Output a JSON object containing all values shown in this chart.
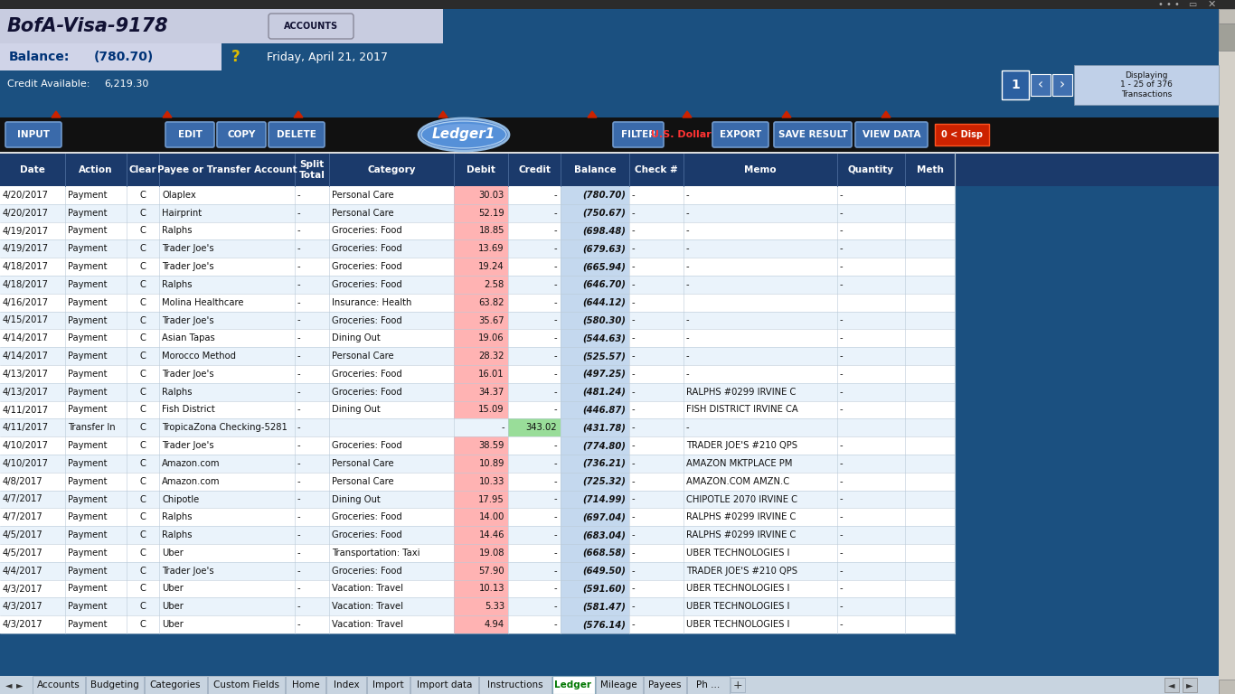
{
  "title_text": "BofA-Visa-9178",
  "balance_label": "Balance:",
  "balance_value": "(780.70)",
  "date_text": "Friday, April 21, 2017",
  "credit_label": "Credit Available:",
  "credit_value": "6,219.30",
  "page_num": "1",
  "accounts_btn": "ACCOUNTS",
  "col_headers": [
    "Date",
    "Action",
    "Clear",
    "Payee or Transfer Account",
    "Split\nTotal",
    "Category",
    "Debit",
    "Credit",
    "Balance",
    "Check #",
    "Memo",
    "Quantity",
    "Meth"
  ],
  "rows": [
    [
      "4/20/2017",
      "Payment",
      "C",
      "Olaplex",
      "-",
      "Personal Care",
      "30.03",
      "-",
      "(780.70)",
      "-",
      "-",
      "-",
      ""
    ],
    [
      "4/20/2017",
      "Payment",
      "C",
      "Hairprint",
      "-",
      "Personal Care",
      "52.19",
      "-",
      "(750.67)",
      "-",
      "-",
      "-",
      ""
    ],
    [
      "4/19/2017",
      "Payment",
      "C",
      "Ralphs",
      "-",
      "Groceries: Food",
      "18.85",
      "-",
      "(698.48)",
      "-",
      "-",
      "-",
      ""
    ],
    [
      "4/19/2017",
      "Payment",
      "C",
      "Trader Joe's",
      "-",
      "Groceries: Food",
      "13.69",
      "-",
      "(679.63)",
      "-",
      "-",
      "-",
      ""
    ],
    [
      "4/18/2017",
      "Payment",
      "C",
      "Trader Joe's",
      "-",
      "Groceries: Food",
      "19.24",
      "-",
      "(665.94)",
      "-",
      "-",
      "-",
      ""
    ],
    [
      "4/18/2017",
      "Payment",
      "C",
      "Ralphs",
      "-",
      "Groceries: Food",
      "2.58",
      "-",
      "(646.70)",
      "-",
      "-",
      "-",
      ""
    ],
    [
      "4/16/2017",
      "Payment",
      "C",
      "Molina Healthcare",
      "-",
      "Insurance: Health",
      "63.82",
      "-",
      "(644.12)",
      "-",
      "",
      "",
      ""
    ],
    [
      "4/15/2017",
      "Payment",
      "C",
      "Trader Joe's",
      "-",
      "Groceries: Food",
      "35.67",
      "-",
      "(580.30)",
      "-",
      "-",
      "-",
      ""
    ],
    [
      "4/14/2017",
      "Payment",
      "C",
      "Asian Tapas",
      "-",
      "Dining Out",
      "19.06",
      "-",
      "(544.63)",
      "-",
      "-",
      "-",
      ""
    ],
    [
      "4/14/2017",
      "Payment",
      "C",
      "Morocco Method",
      "-",
      "Personal Care",
      "28.32",
      "-",
      "(525.57)",
      "-",
      "-",
      "-",
      ""
    ],
    [
      "4/13/2017",
      "Payment",
      "C",
      "Trader Joe's",
      "-",
      "Groceries: Food",
      "16.01",
      "-",
      "(497.25)",
      "-",
      "-",
      "-",
      ""
    ],
    [
      "4/13/2017",
      "Payment",
      "C",
      "Ralphs",
      "-",
      "Groceries: Food",
      "34.37",
      "-",
      "(481.24)",
      "-",
      "RALPHS #0299 IRVINE C",
      "-",
      ""
    ],
    [
      "4/11/2017",
      "Payment",
      "C",
      "Fish District",
      "-",
      "Dining Out",
      "15.09",
      "-",
      "(446.87)",
      "-",
      "FISH DISTRICT IRVINE CA",
      "-",
      ""
    ],
    [
      "4/11/2017",
      "Transfer In",
      "C",
      "TropicaZona Checking-5281",
      "-",
      "",
      "-",
      "343.02",
      "(431.78)",
      "-",
      "-",
      "",
      ""
    ],
    [
      "4/10/2017",
      "Payment",
      "C",
      "Trader Joe's",
      "-",
      "Groceries: Food",
      "38.59",
      "-",
      "(774.80)",
      "-",
      "TRADER JOE'S #210 QPS",
      "-",
      ""
    ],
    [
      "4/10/2017",
      "Payment",
      "C",
      "Amazon.com",
      "-",
      "Personal Care",
      "10.89",
      "-",
      "(736.21)",
      "-",
      "AMAZON MKTPLACE PM",
      "-",
      ""
    ],
    [
      "4/8/2017",
      "Payment",
      "C",
      "Amazon.com",
      "-",
      "Personal Care",
      "10.33",
      "-",
      "(725.32)",
      "-",
      "AMAZON.COM AMZN.C",
      "-",
      ""
    ],
    [
      "4/7/2017",
      "Payment",
      "C",
      "Chipotle",
      "-",
      "Dining Out",
      "17.95",
      "-",
      "(714.99)",
      "-",
      "CHIPOTLE 2070 IRVINE C",
      "-",
      ""
    ],
    [
      "4/7/2017",
      "Payment",
      "C",
      "Ralphs",
      "-",
      "Groceries: Food",
      "14.00",
      "-",
      "(697.04)",
      "-",
      "RALPHS #0299 IRVINE C",
      "-",
      ""
    ],
    [
      "4/5/2017",
      "Payment",
      "C",
      "Ralphs",
      "-",
      "Groceries: Food",
      "14.46",
      "-",
      "(683.04)",
      "-",
      "RALPHS #0299 IRVINE C",
      "-",
      ""
    ],
    [
      "4/5/2017",
      "Payment",
      "C",
      "Uber",
      "-",
      "Transportation: Taxi",
      "19.08",
      "-",
      "(668.58)",
      "-",
      "UBER TECHNOLOGIES I",
      "-",
      ""
    ],
    [
      "4/4/2017",
      "Payment",
      "C",
      "Trader Joe's",
      "-",
      "Groceries: Food",
      "57.90",
      "-",
      "(649.50)",
      "-",
      "TRADER JOE'S #210 QPS",
      "-",
      ""
    ],
    [
      "4/3/2017",
      "Payment",
      "C",
      "Uber",
      "-",
      "Vacation: Travel",
      "10.13",
      "-",
      "(591.60)",
      "-",
      "UBER TECHNOLOGIES I",
      "-",
      ""
    ],
    [
      "4/3/2017",
      "Payment",
      "C",
      "Uber",
      "-",
      "Vacation: Travel",
      "5.33",
      "-",
      "(581.47)",
      "-",
      "UBER TECHNOLOGIES I",
      "-",
      ""
    ],
    [
      "4/3/2017",
      "Payment",
      "C",
      "Uber",
      "-",
      "Vacation: Travel",
      "4.94",
      "-",
      "(576.14)",
      "-",
      "UBER TECHNOLOGIES I",
      "-",
      ""
    ]
  ],
  "tab_labels": [
    "Accounts",
    "Budgeting",
    "Categories",
    "Custom Fields",
    "Home",
    "Index",
    "Import",
    "Import data",
    "Instructions",
    "Ledger",
    "Mileage",
    "Payees",
    "Ph ..."
  ],
  "active_tab": "Ledger"
}
